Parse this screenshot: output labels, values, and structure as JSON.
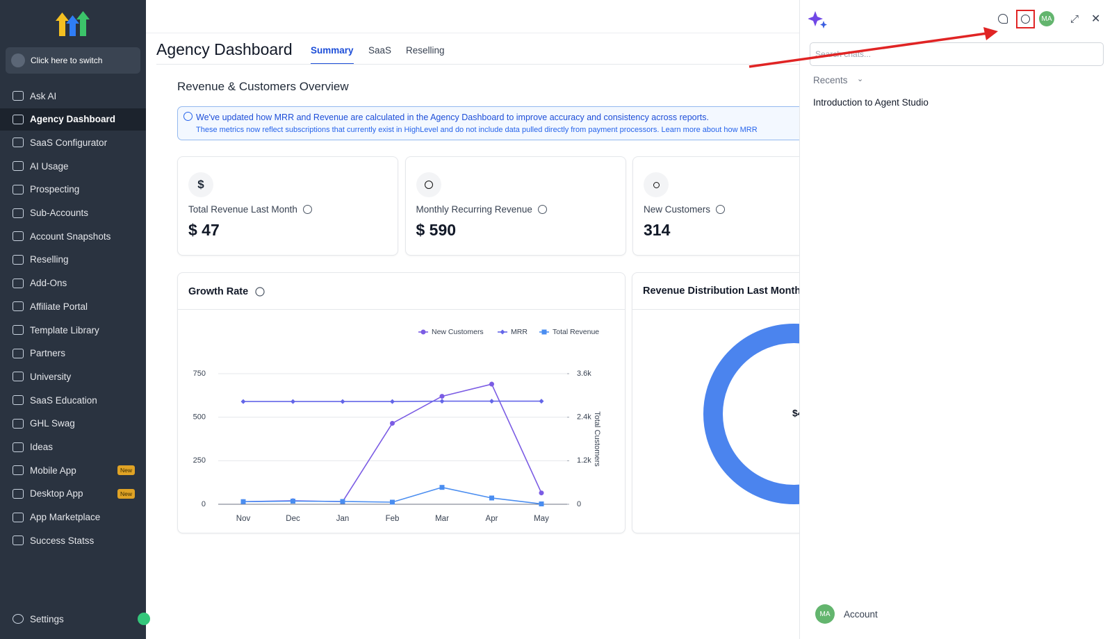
{
  "sidebar": {
    "switcher": "Click here to switch",
    "items": [
      {
        "label": "Ask AI"
      },
      {
        "label": "Agency Dashboard"
      },
      {
        "label": "SaaS Configurator"
      },
      {
        "label": "AI Usage"
      },
      {
        "label": "Prospecting"
      },
      {
        "label": "Sub-Accounts"
      },
      {
        "label": "Account Snapshots"
      },
      {
        "label": "Reselling"
      },
      {
        "label": "Add-Ons"
      },
      {
        "label": "Affiliate Portal"
      },
      {
        "label": "Template Library"
      },
      {
        "label": "Partners"
      },
      {
        "label": "University"
      },
      {
        "label": "SaaS Education"
      },
      {
        "label": "GHL Swag"
      },
      {
        "label": "Ideas"
      },
      {
        "label": "Mobile App",
        "badge": "New"
      },
      {
        "label": "Desktop App",
        "badge": "New"
      },
      {
        "label": "App Marketplace"
      },
      {
        "label": "Success Statss"
      }
    ],
    "settings": "Settings"
  },
  "header": {
    "title": "Agency Dashboard",
    "tabs": [
      "Summary",
      "SaaS",
      "Reselling"
    ]
  },
  "section_title": "Revenue & Customers Overview",
  "notice": {
    "headline": "We've updated how MRR and Revenue are calculated in the Agency Dashboard to improve accuracy and consistency across reports.",
    "body": "These metrics now reflect subscriptions that currently exist in HighLevel and do not include data pulled directly from payment processors. Learn more about how MRR"
  },
  "cards": [
    {
      "icon": "$",
      "label": "Total Revenue Last Month",
      "value": "$ 47"
    },
    {
      "label": "Monthly Recurring Revenue",
      "value": "$ 590"
    },
    {
      "label": "New Customers",
      "value": "314"
    }
  ],
  "chart_data": {
    "type": "line",
    "title": "Growth Rate",
    "categories": [
      "Nov",
      "Dec",
      "Jan",
      "Feb",
      "Mar",
      "Apr",
      "May"
    ],
    "series": [
      {
        "name": "New Customers",
        "color": "#7b5ce4",
        "marker": "circle",
        "values": [
          15,
          20,
          15,
          465,
          620,
          690,
          65
        ]
      },
      {
        "name": "MRR",
        "color": "#6466e8",
        "marker": "diamond",
        "values": [
          590,
          590,
          590,
          590,
          592,
          592,
          592
        ]
      },
      {
        "name": "Total Revenue",
        "color": "#4a8df0",
        "marker": "square",
        "values": [
          15,
          18,
          16,
          12,
          97,
          36,
          2
        ]
      }
    ],
    "ylim": [
      0,
      750
    ],
    "yticks": [
      0,
      250,
      500,
      750
    ],
    "y2lim": [
      0,
      3600
    ],
    "y2ticks": [
      0,
      {
        "value": 1200,
        "label": "1.2k"
      },
      {
        "value": 2400,
        "label": "2.4k"
      },
      {
        "value": 3600,
        "label": "3.6k"
      }
    ],
    "y2_label": "Total Customers",
    "grid": true
  },
  "distribution": {
    "title": "Revenue Distribution Last Month",
    "center": "$4"
  },
  "chat_panel": {
    "avatar": "MA",
    "search_placeholder": "Search chats...",
    "recents": "Recents",
    "chats": [
      "Introduction to Agent Studio"
    ],
    "account": {
      "avatar": "MA",
      "label": "Account"
    }
  }
}
